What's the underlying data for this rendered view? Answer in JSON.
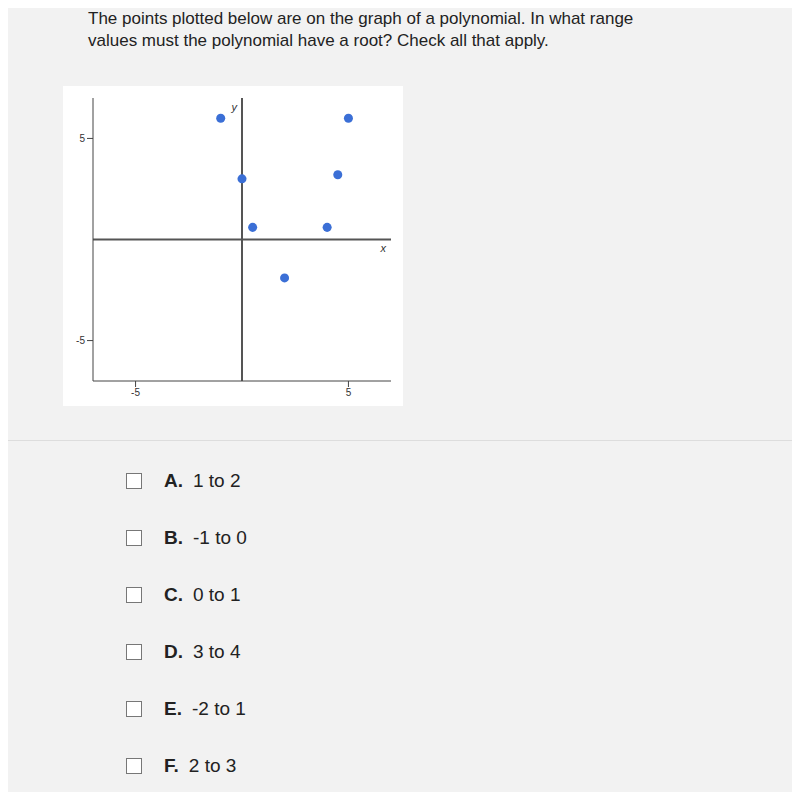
{
  "question_lines": [
    "The points plotted below are on the graph of a polynomial. In what range",
    "values must the polynomial have a root? Check all that apply."
  ],
  "chart_data": {
    "type": "scatter",
    "x": [
      -1,
      0,
      0.5,
      2,
      4,
      4.5,
      5
    ],
    "values": [
      6,
      3,
      0.6,
      -1.9,
      0.6,
      3.2,
      6
    ],
    "color": "#3b6fd6",
    "marker": "circle",
    "xlim": [
      -7,
      7
    ],
    "ylim": [
      -7,
      7
    ],
    "xticks": [
      -5,
      5
    ],
    "yticks": [
      -5,
      5
    ],
    "x_label": "x",
    "y_label": "y",
    "grid": false
  },
  "options": [
    {
      "letter": "A.",
      "text": "1 to 2"
    },
    {
      "letter": "B.",
      "text": "-1 to 0"
    },
    {
      "letter": "C.",
      "text": "0 to 1"
    },
    {
      "letter": "D.",
      "text": "3 to 4"
    },
    {
      "letter": "E.",
      "text": "-2 to 1"
    },
    {
      "letter": "F.",
      "text": "2 to 3"
    }
  ]
}
